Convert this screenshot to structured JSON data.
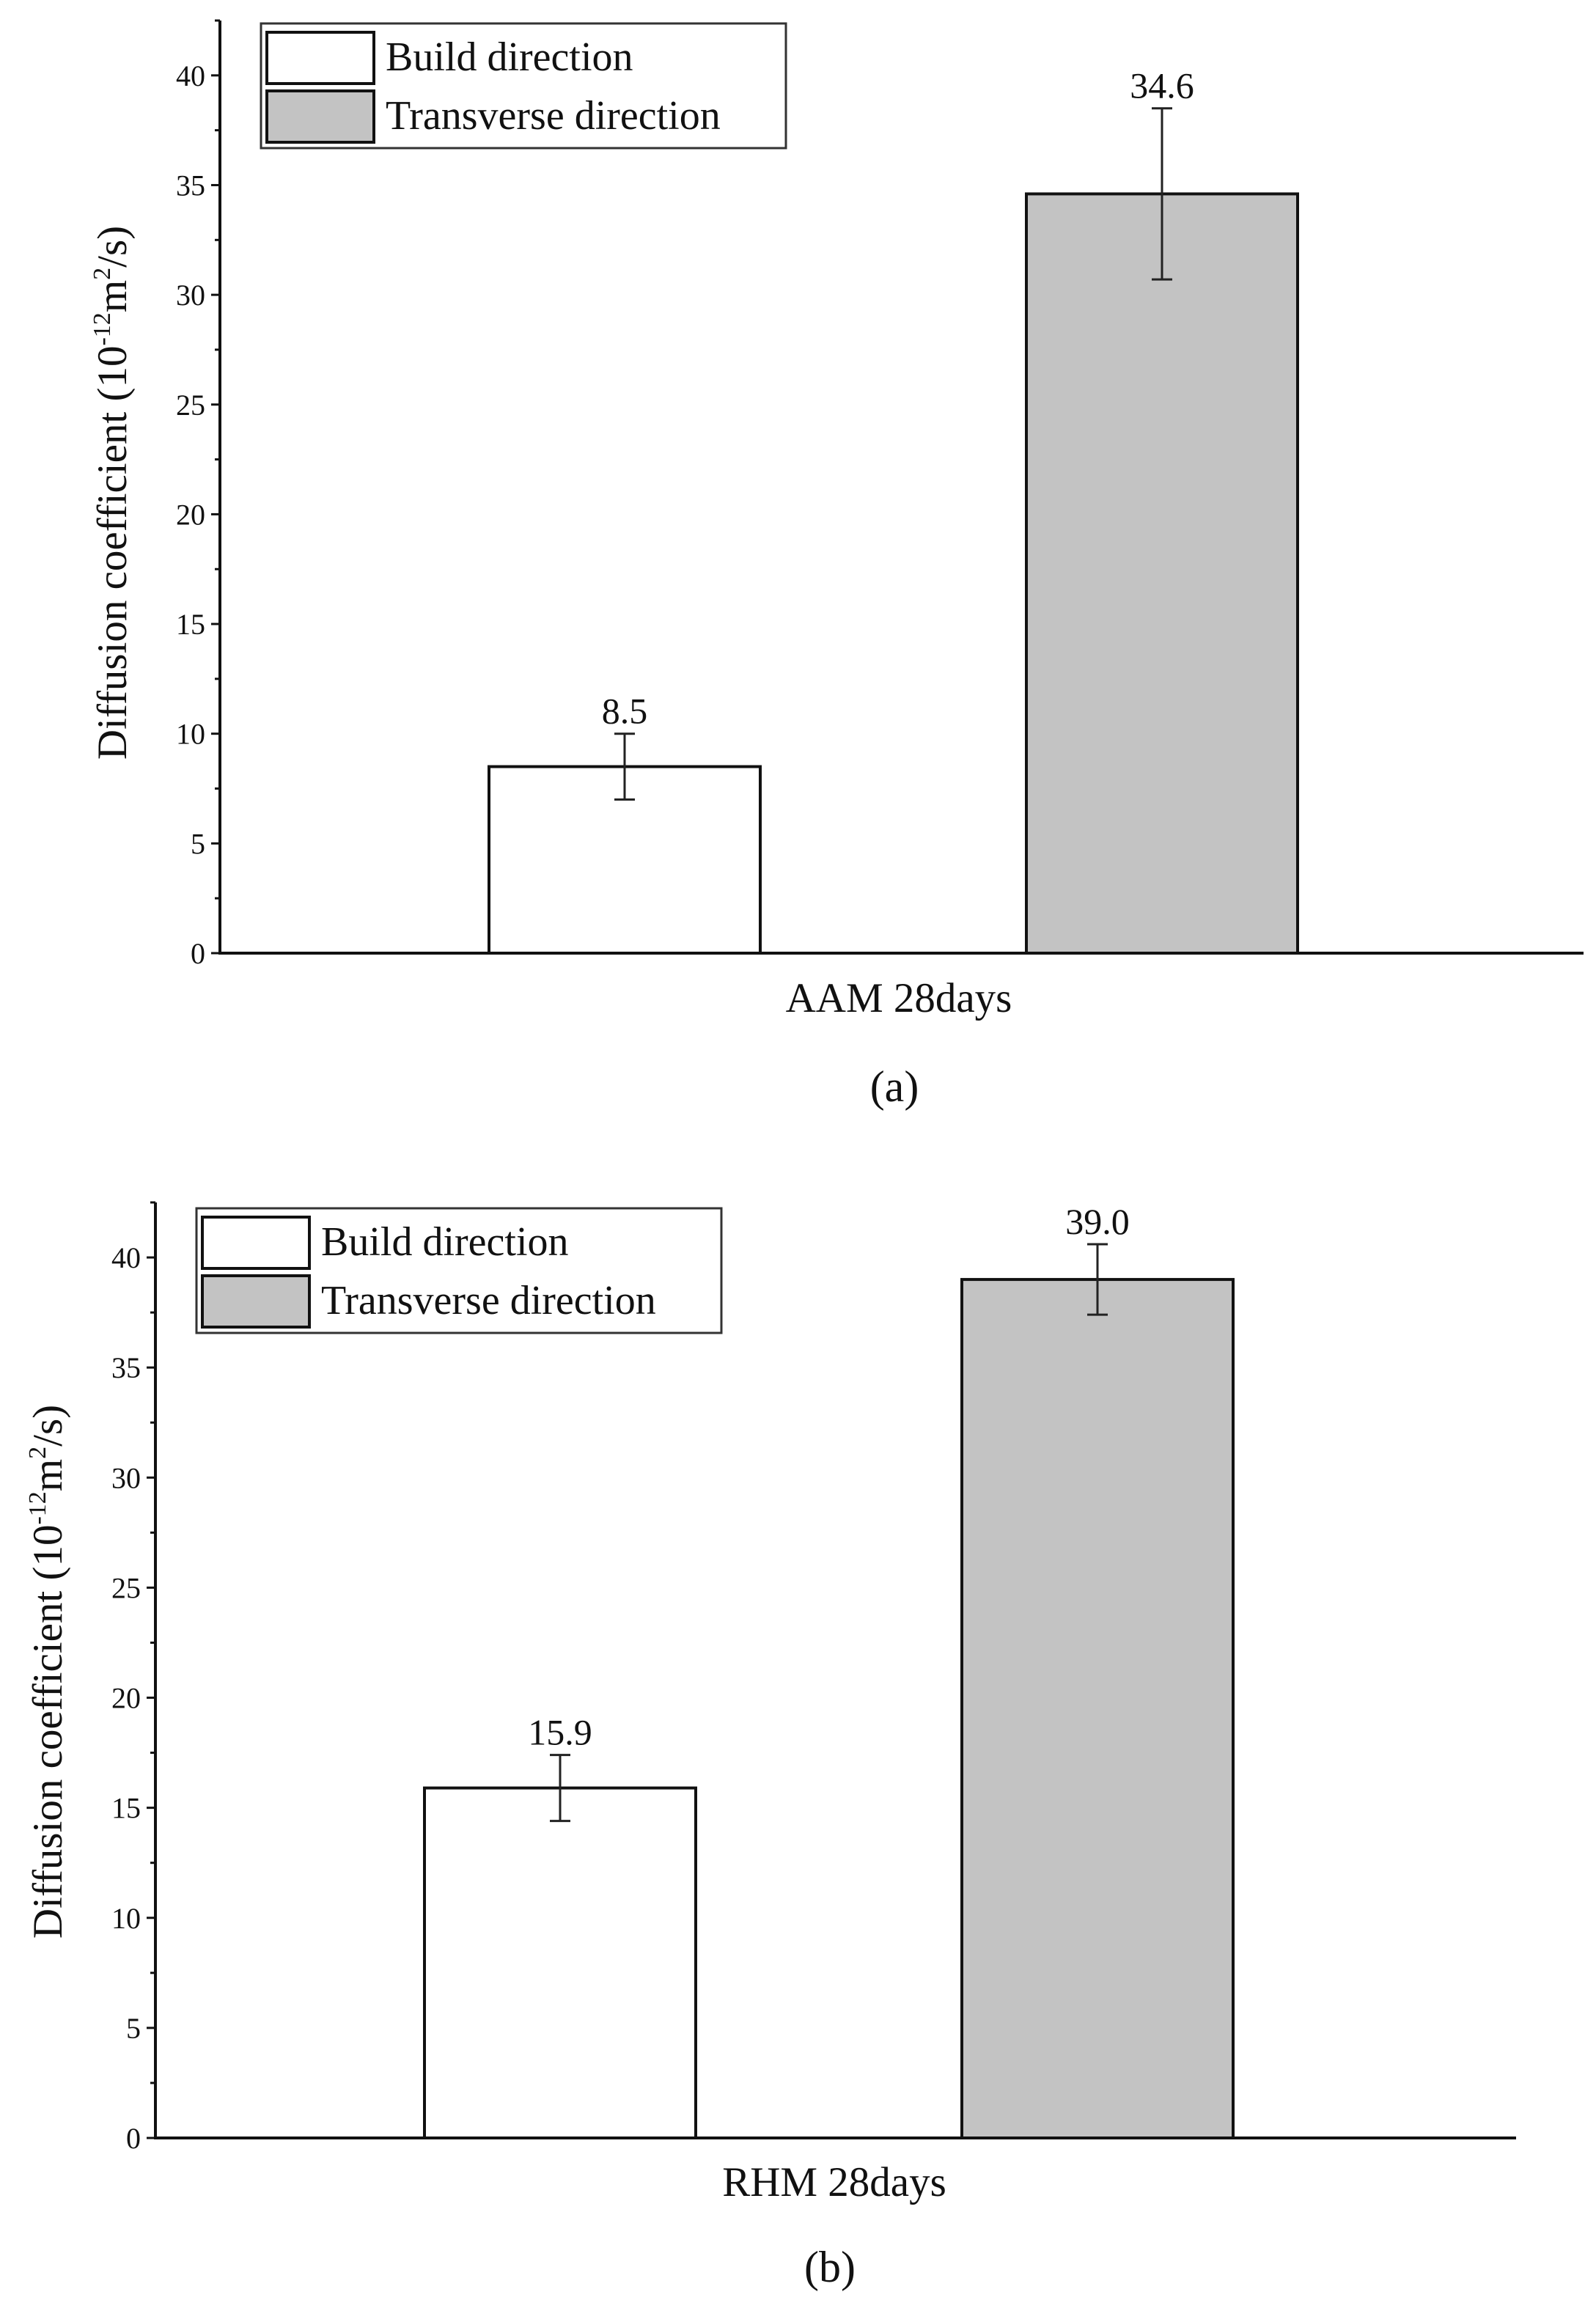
{
  "chart_data": [
    {
      "type": "bar",
      "panel_label": "(a)",
      "category": "AAM 28days",
      "ylabel": "Diffusion coefficient (10-12m2/s)",
      "ylabel_parts": {
        "prefix": "Diffusion coefficient (10",
        "exp1": "-12",
        "mid": "m",
        "exp2": "2",
        "suffix": "/s)"
      },
      "ylim": [
        0,
        42.5
      ],
      "yticks": [
        0,
        5,
        10,
        15,
        20,
        25,
        30,
        35,
        40
      ],
      "legend_position": "top-left",
      "series": [
        {
          "name": "Build direction",
          "value": 8.5,
          "label": "8.5",
          "error_low": 7.0,
          "error_high": 10.0,
          "color": "#ffffff"
        },
        {
          "name": "Transverse direction",
          "value": 34.6,
          "label": "34.6",
          "error_low": 30.7,
          "error_high": 38.5,
          "color": "#c3c3c3"
        }
      ]
    },
    {
      "type": "bar",
      "panel_label": "(b)",
      "category": "RHM 28days",
      "ylabel": "Diffusion coefficient (10-12m2/s)",
      "ylabel_parts": {
        "prefix": "Diffusion coefficient (10",
        "exp1": "-12",
        "mid": "m",
        "exp2": "2",
        "suffix": "/s)"
      },
      "ylim": [
        0,
        42.5
      ],
      "yticks": [
        0,
        5,
        10,
        15,
        20,
        25,
        30,
        35,
        40
      ],
      "legend_position": "top-left",
      "series": [
        {
          "name": "Build direction",
          "value": 15.9,
          "label": "15.9",
          "error_low": 14.4,
          "error_high": 17.4,
          "color": "#ffffff"
        },
        {
          "name": "Transverse direction",
          "value": 39.0,
          "label": "39.0",
          "error_low": 37.4,
          "error_high": 40.6,
          "color": "#c3c3c3"
        }
      ]
    }
  ]
}
